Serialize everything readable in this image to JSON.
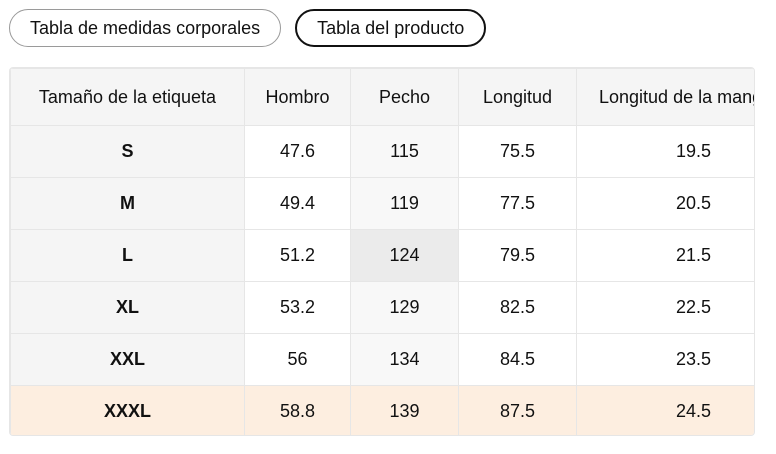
{
  "tabs": [
    "Tabla de medidas corporales",
    "Tabla del producto"
  ],
  "table": {
    "header": [
      "Tamaño de la etiqueta",
      "Hombro",
      "Pecho",
      "Longitud",
      "Longitud de la manga"
    ],
    "rows": [
      [
        "S",
        "47.6",
        "115",
        "75.5",
        "19.5"
      ],
      [
        "M",
        "49.4",
        "119",
        "77.5",
        "20.5"
      ],
      [
        "L",
        "51.2",
        "124",
        "79.5",
        "21.5"
      ],
      [
        "XL",
        "53.2",
        "129",
        "82.5",
        "22.5"
      ],
      [
        "XXL",
        "56",
        "134",
        "84.5",
        "23.5"
      ],
      [
        "XXXL",
        "58.8",
        "139",
        "87.5",
        "24.5"
      ]
    ]
  }
}
